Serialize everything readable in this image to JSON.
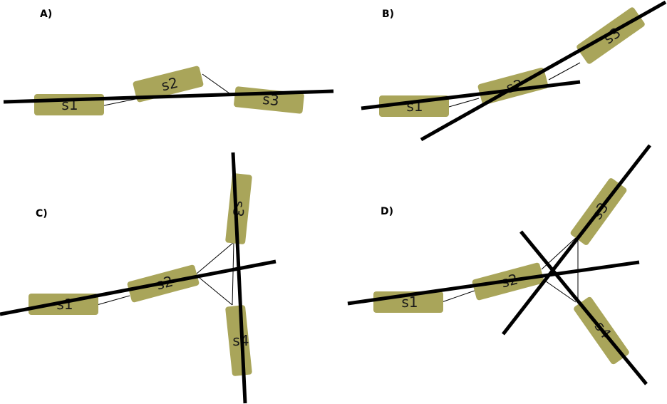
{
  "panels": [
    {
      "label": "A)",
      "segments": [
        {
          "label": "s1"
        },
        {
          "label": "s2"
        },
        {
          "label": "s3"
        }
      ]
    },
    {
      "label": "B)",
      "segments": [
        {
          "label": "s1"
        },
        {
          "label": "s2"
        },
        {
          "label": "s3"
        }
      ]
    },
    {
      "label": "C)",
      "segments": [
        {
          "label": "s1"
        },
        {
          "label": "s2"
        },
        {
          "label": "s3"
        },
        {
          "label": "s4"
        }
      ]
    },
    {
      "label": "D)",
      "segments": [
        {
          "label": "s1"
        },
        {
          "label": "s2"
        },
        {
          "label": "s3"
        },
        {
          "label": "s4"
        }
      ]
    }
  ],
  "colors": {
    "segment_fill": "#a9a55a",
    "line": "#000000",
    "connector": "#000000"
  }
}
